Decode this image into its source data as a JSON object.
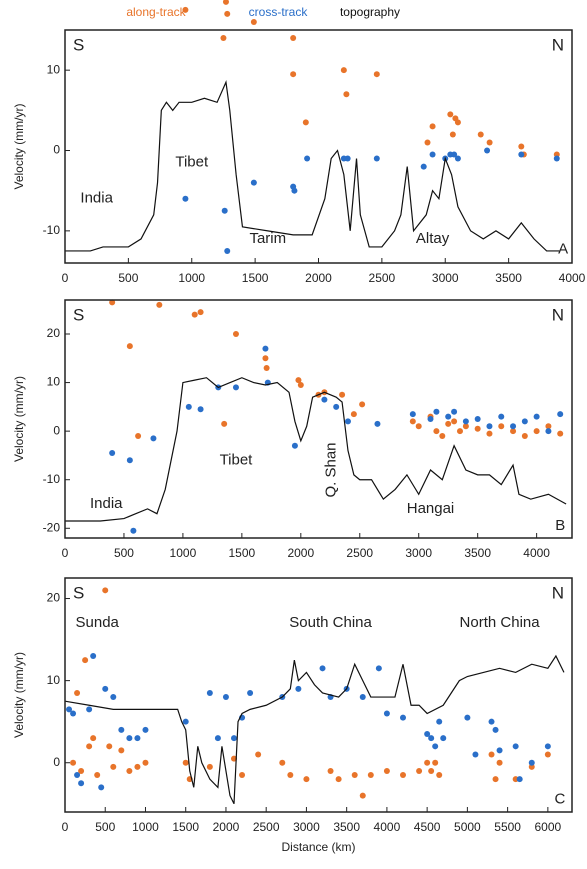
{
  "chart_data": [
    {
      "type": "scatter",
      "xlim": [
        0,
        4000
      ],
      "ylim": [
        -14,
        15
      ],
      "xticks": [
        0,
        500,
        1000,
        1500,
        2000,
        2500,
        3000,
        3500,
        4000
      ],
      "yticks": [
        -10,
        0,
        10
      ],
      "y_label": "Velocity (mm/yr)",
      "annotations": [
        "S",
        "N",
        "India",
        "Tibet",
        "Tarim",
        "Altay",
        "A"
      ],
      "series": [
        {
          "name": "along-track",
          "color": "#e8742a",
          "x": [
            950,
            1250,
            1270,
            1280,
            1490,
            1800,
            1800,
            1900,
            2200,
            2220,
            2460,
            2860,
            2900,
            3040,
            3060,
            3080,
            3100,
            3280,
            3350,
            3600,
            3620,
            3880
          ],
          "values": [
            17.5,
            14,
            18.5,
            17,
            16,
            14,
            9.5,
            3.5,
            10,
            7,
            9.5,
            1,
            3,
            4.5,
            2,
            4,
            3.5,
            2,
            1,
            0.5,
            -0.5,
            -0.5
          ]
        },
        {
          "name": "cross-track",
          "color": "#2a6fc9",
          "x": [
            950,
            1260,
            1280,
            1490,
            1800,
            1810,
            1910,
            2200,
            2230,
            2460,
            2830,
            2900,
            3000,
            3040,
            3070,
            3100,
            3330,
            3600,
            3880
          ],
          "values": [
            -6,
            -7.5,
            -12.5,
            -4,
            -4.5,
            -5,
            -1,
            -1,
            -1,
            -1,
            -2,
            -0.5,
            -1,
            -0.5,
            -0.5,
            -1,
            0,
            -0.5,
            -1
          ]
        },
        {
          "name": "topography",
          "color": "#111111",
          "line": true,
          "x": [
            0,
            200,
            300,
            500,
            600,
            700,
            730,
            760,
            800,
            850,
            900,
            1000,
            1100,
            1200,
            1270,
            1300,
            1350,
            1400,
            1600,
            1800,
            1950,
            2050,
            2100,
            2150,
            2200,
            2250,
            2300,
            2330,
            2400,
            2500,
            2600,
            2650,
            2700,
            2750,
            2850,
            2900,
            2950,
            3000,
            3050,
            3100,
            3200,
            3300,
            3400,
            3500,
            3600,
            3700,
            3800,
            3900
          ],
          "values": [
            -12.5,
            -12.5,
            -12,
            -12,
            -11,
            -8,
            -4,
            5,
            6,
            5,
            6,
            6,
            6.5,
            6,
            8.5,
            5,
            -3,
            -9.5,
            -10,
            -10.5,
            -10.5,
            -6,
            -1,
            0,
            -3,
            -10,
            -1,
            -8,
            -12,
            -12,
            -10,
            -8,
            -2,
            -10,
            -8,
            -5,
            -6,
            -1,
            -3,
            -7,
            -10,
            -11,
            -10,
            -11,
            -9,
            -11,
            -12.5,
            -12.5
          ]
        }
      ]
    },
    {
      "type": "scatter",
      "xlim": [
        0,
        4300
      ],
      "ylim": [
        -22,
        27
      ],
      "xticks": [
        0,
        500,
        1000,
        1500,
        2000,
        2500,
        3000,
        3500,
        4000
      ],
      "yticks": [
        -20,
        -10,
        0,
        10,
        20
      ],
      "y_label": "Velocity (mm/yr)",
      "annotations": [
        "S",
        "N",
        "India",
        "Tibet",
        "Q. Shan",
        "Hangai",
        "B"
      ],
      "series": [
        {
          "color": "#e8742a",
          "x": [
            400,
            550,
            620,
            800,
            1100,
            1150,
            1350,
            1450,
            1700,
            1710,
            1980,
            2000,
            2150,
            2200,
            2350,
            2450,
            2520,
            2950,
            3000,
            3100,
            3150,
            3200,
            3250,
            3300,
            3350,
            3400,
            3500,
            3600,
            3700,
            3800,
            3900,
            4000,
            4100,
            4200
          ],
          "values": [
            26.5,
            17.5,
            -1,
            26,
            24,
            24.5,
            1.5,
            20,
            15,
            13,
            10.5,
            9.5,
            7.5,
            8,
            7.5,
            3.5,
            5.5,
            2,
            1,
            3,
            0,
            -1,
            1.5,
            2,
            0,
            1,
            0.5,
            -0.5,
            1,
            0,
            -1,
            0,
            1,
            -0.5
          ]
        },
        {
          "color": "#2a6fc9",
          "x": [
            400,
            550,
            580,
            750,
            1050,
            1150,
            1300,
            1450,
            1700,
            1720,
            1950,
            2200,
            2300,
            2400,
            2650,
            2950,
            3100,
            3150,
            3250,
            3300,
            3400,
            3500,
            3600,
            3700,
            3800,
            3900,
            4000,
            4100,
            4200
          ],
          "values": [
            -4.5,
            -6,
            -20.5,
            -1.5,
            5,
            4.5,
            9,
            9,
            17,
            10,
            -3,
            6.5,
            5,
            2,
            1.5,
            3.5,
            2.5,
            4,
            3,
            4,
            2,
            2.5,
            1,
            3,
            1,
            2,
            3,
            0,
            3.5
          ]
        },
        {
          "color": "#111111",
          "line": true,
          "x": [
            0,
            300,
            500,
            600,
            700,
            780,
            850,
            950,
            1000,
            1100,
            1200,
            1300,
            1400,
            1500,
            1600,
            1700,
            1800,
            1900,
            1950,
            2000,
            2050,
            2100,
            2200,
            2300,
            2350,
            2400,
            2450,
            2500,
            2600,
            2700,
            2800,
            2900,
            3000,
            3100,
            3200,
            3300,
            3400,
            3500,
            3600,
            3700,
            3800,
            3850,
            3950,
            4100,
            4250
          ],
          "values": [
            -18.5,
            -18.5,
            -18,
            -17,
            -16,
            -17,
            -12,
            0,
            10,
            10.5,
            11,
            9,
            10,
            11,
            10,
            9.5,
            10,
            8,
            2,
            -2,
            1,
            7,
            8,
            7,
            6,
            -4,
            -9,
            -10,
            -10,
            -14,
            -12,
            -9,
            -13,
            -8,
            -10,
            -3,
            -8,
            -9,
            -9,
            -11,
            -7,
            -13,
            -14,
            -13,
            -15
          ]
        }
      ]
    },
    {
      "type": "scatter",
      "xlim": [
        0,
        6300
      ],
      "ylim": [
        -6,
        22.5
      ],
      "xticks": [
        0,
        500,
        1000,
        1500,
        2000,
        2500,
        3000,
        3500,
        4000,
        4500,
        5000,
        5500,
        6000
      ],
      "yticks": [
        0,
        10,
        20
      ],
      "y_label": "Velocity (mm/yr)",
      "x_label": "Distance (km)",
      "annotations": [
        "S",
        "N",
        "Sunda",
        "South China",
        "North China",
        "C"
      ],
      "series": [
        {
          "color": "#e8742a",
          "x": [
            100,
            150,
            200,
            250,
            300,
            350,
            400,
            500,
            550,
            600,
            700,
            800,
            900,
            1000,
            1500,
            1550,
            1800,
            2100,
            2200,
            2400,
            2700,
            2800,
            3000,
            3300,
            3400,
            3600,
            3700,
            3800,
            4000,
            4200,
            4400,
            4500,
            4550,
            4600,
            4650,
            5300,
            5350,
            5400,
            5600,
            5800,
            6000
          ],
          "values": [
            0,
            8.5,
            -1,
            12.5,
            2,
            3,
            -1.5,
            21,
            2,
            -0.5,
            1.5,
            -1,
            -0.5,
            0,
            0,
            -2,
            -0.5,
            0.5,
            -1.5,
            1,
            0,
            -1.5,
            -2,
            -1,
            -2,
            -1.5,
            -4,
            -1.5,
            -1,
            -1.5,
            -1,
            0,
            -1,
            0,
            -1.5,
            1,
            -2,
            0,
            -2,
            -0.5,
            1
          ]
        },
        {
          "color": "#2a6fc9",
          "x": [
            50,
            100,
            150,
            200,
            300,
            350,
            450,
            500,
            600,
            700,
            800,
            900,
            1000,
            1500,
            1800,
            1900,
            2000,
            2100,
            2200,
            2300,
            2700,
            2900,
            3200,
            3300,
            3500,
            3700,
            3900,
            4000,
            4200,
            4500,
            4550,
            4600,
            4650,
            4700,
            5000,
            5100,
            5300,
            5350,
            5400,
            5600,
            5650,
            5800,
            6000
          ],
          "values": [
            6.5,
            6,
            -1.5,
            -2.5,
            6.5,
            13,
            -3,
            9,
            8,
            4,
            3,
            3,
            4,
            5,
            8.5,
            3,
            8,
            3,
            5.5,
            8.5,
            8,
            9,
            11.5,
            8,
            9,
            8,
            11.5,
            6,
            5.5,
            3.5,
            3,
            2,
            5,
            3,
            5.5,
            1,
            5,
            4,
            1.5,
            2,
            -2,
            0,
            2
          ]
        },
        {
          "color": "#111111",
          "line": true,
          "x": [
            0,
            300,
            600,
            1000,
            1400,
            1450,
            1500,
            1550,
            1600,
            1650,
            1700,
            1800,
            1900,
            1950,
            2050,
            2100,
            2150,
            2200,
            2300,
            2500,
            2700,
            2800,
            2850,
            2900,
            3000,
            3100,
            3200,
            3400,
            3500,
            3600,
            3700,
            3800,
            4000,
            4100,
            4200,
            4300,
            4400,
            4500,
            4700,
            4900,
            5000,
            5200,
            5400,
            5600,
            5800,
            6000,
            6100,
            6200
          ],
          "values": [
            7.5,
            7,
            6.5,
            6.5,
            6.5,
            5,
            4,
            -1,
            -3,
            2,
            0,
            -2,
            -3,
            2,
            -4,
            -5,
            5,
            6,
            6.5,
            7,
            8,
            9,
            12.5,
            10,
            11,
            9.5,
            8.5,
            8,
            9,
            12,
            10,
            8,
            8,
            8,
            12,
            7,
            7,
            6,
            7,
            10,
            10.5,
            11,
            11.5,
            11,
            12,
            11.5,
            13,
            11
          ]
        }
      ]
    }
  ]
}
